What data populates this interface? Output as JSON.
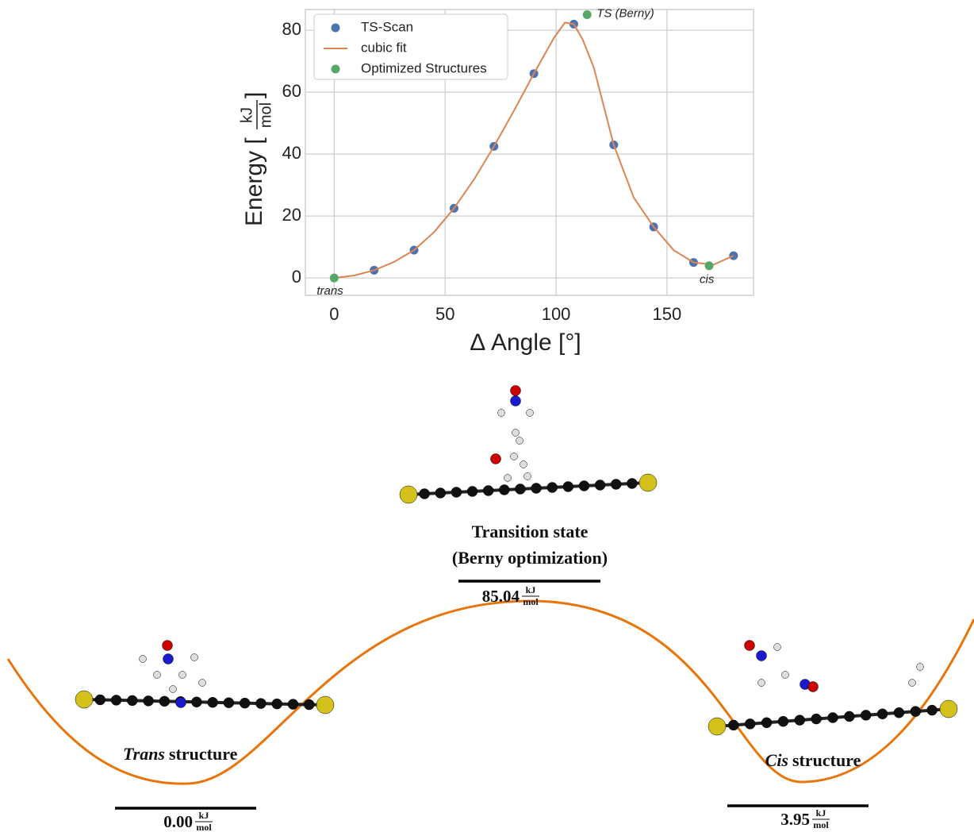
{
  "chart_data": {
    "type": "scatter",
    "xlabel": "Δ Angle [°]",
    "ylabel": "Energy [",
    "ylabel_unit_num": "kJ",
    "ylabel_unit_den": "mol",
    "ylabel_end": "]",
    "xlim": [
      -13,
      189
    ],
    "ylim": [
      -5.6,
      86.7
    ],
    "xticks": [
      0,
      50,
      100,
      150
    ],
    "yticks": [
      0,
      20,
      40,
      60,
      80
    ],
    "grid": true,
    "legend": "upper left",
    "series": [
      {
        "name": "TS-Scan",
        "type": "scatter",
        "color": "#4c72b0",
        "x": [
          18,
          36,
          54,
          72,
          90,
          108,
          126,
          144,
          162,
          180
        ],
        "values": [
          2.5,
          9,
          22.5,
          42.5,
          66,
          82,
          43,
          16.5,
          5,
          7.2
        ]
      },
      {
        "name": "cubic fit",
        "type": "line",
        "color": "#dd8452",
        "x": [
          0,
          9,
          18,
          27,
          36,
          45,
          54,
          63,
          72,
          81,
          90,
          99,
          104,
          108,
          112,
          117,
          126,
          135,
          144,
          153,
          162,
          171,
          180
        ],
        "values": [
          0,
          0.8,
          2.5,
          5.2,
          9,
          14.8,
          22.5,
          31.8,
          42.5,
          54,
          66,
          77.5,
          82.5,
          82,
          77,
          68,
          43,
          26,
          16.5,
          9,
          5,
          4.3,
          7.2
        ]
      },
      {
        "name": "Optimized Structures",
        "type": "scatter",
        "color": "#55a868",
        "x": [
          0,
          114,
          169
        ],
        "values": [
          0,
          85.04,
          3.95
        ],
        "point_labels": [
          "trans",
          "TS (Berny)",
          "cis"
        ]
      }
    ]
  },
  "diagram": {
    "ts": {
      "line1": "Transition state",
      "line2": "(Berny optimization)",
      "energy": "85.04",
      "unit_num": "kJ",
      "unit_den": "mol"
    },
    "trans": {
      "name": "Trans",
      "suffix": "structure",
      "energy": "0.00",
      "unit_num": "kJ",
      "unit_den": "mol"
    },
    "cis": {
      "name": "Cis",
      "suffix": "structure",
      "energy": "3.95",
      "unit_num": "kJ",
      "unit_den": "mol"
    }
  }
}
